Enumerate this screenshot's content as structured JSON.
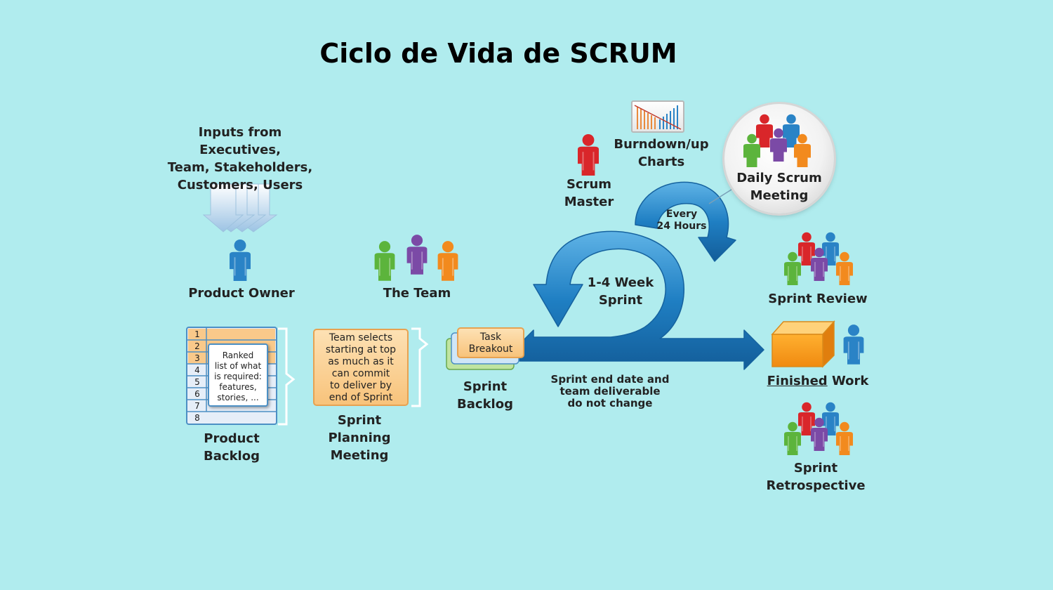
{
  "title": "Ciclo de Vida de SCRUM",
  "inputs": {
    "line1": "Inputs from Executives,",
    "line2": "Team, Stakeholders,",
    "line3": "Customers, Users"
  },
  "product_owner": "Product Owner",
  "the_team": "The Team",
  "scrum_master": {
    "line1": "Scrum",
    "line2": "Master"
  },
  "burndown": {
    "line1": "Burndown/up",
    "line2": "Charts"
  },
  "daily_scrum": {
    "line1": "Daily Scrum",
    "line2": "Meeting"
  },
  "every_24": {
    "line1": "Every",
    "line2": "24 Hours"
  },
  "sprint_cycle": {
    "line1": "1-4 Week",
    "line2": "Sprint"
  },
  "product_backlog": {
    "rows": [
      "1",
      "2",
      "3",
      "4",
      "5",
      "6",
      "7",
      "8"
    ],
    "note": [
      "Ranked",
      "list of what",
      "is required:",
      "features,",
      "stories, ..."
    ],
    "label1": "Product",
    "label2": "Backlog"
  },
  "sprint_planning": {
    "note": [
      "Team selects",
      "starting at top",
      "as much as it",
      "can commit",
      "to deliver by",
      "end of Sprint"
    ],
    "label1": "Sprint",
    "label2": "Planning",
    "label3": "Meeting"
  },
  "sprint_backlog": {
    "note1": "Task",
    "note2": "Breakout",
    "label1": "Sprint",
    "label2": "Backlog"
  },
  "sprint_end": {
    "line1": "Sprint end date and",
    "line2": "team deliverable",
    "line3": "do not change"
  },
  "sprint_review": "Sprint Review",
  "finished_work": {
    "underlined": "Finished",
    "rest": " Work"
  },
  "sprint_retro": {
    "line1": "Sprint",
    "line2": "Retrospective"
  },
  "colors": {
    "background": "#b0ecee",
    "arrow_blue": "#1f7fc3",
    "person_blue": "#2a83c6",
    "person_red": "#d9262a",
    "person_green": "#5cb43c",
    "person_purple": "#7b4aa6",
    "person_orange": "#f28a1e",
    "note_orange": "#f8c37b"
  }
}
